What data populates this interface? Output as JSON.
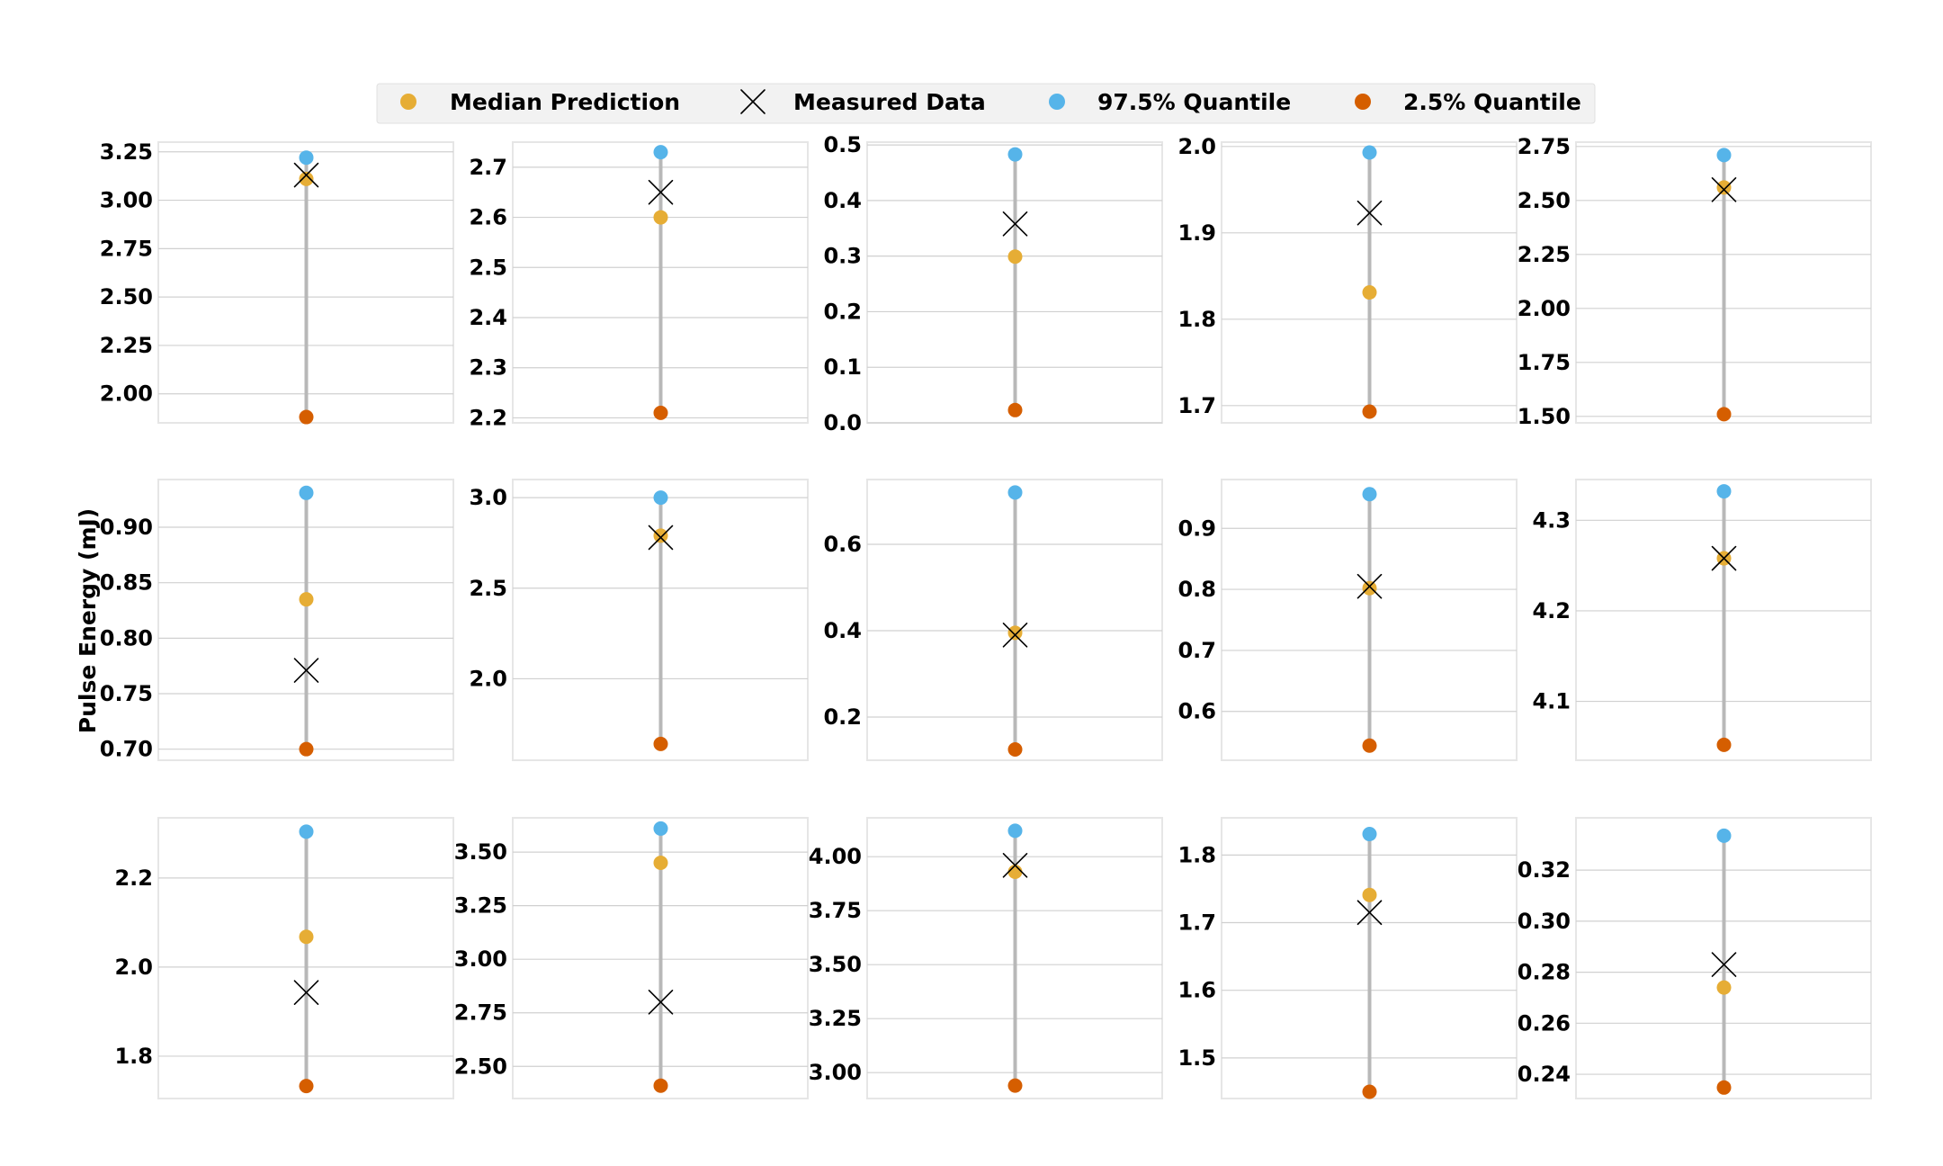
{
  "chart_data": {
    "type": "scatter",
    "ylabel": "Pulse Energy (mJ)",
    "legend": {
      "placement": "top-center",
      "items": [
        {
          "key": "median",
          "label": "Median Prediction",
          "color": "#E6AD35",
          "marker": "circle"
        },
        {
          "key": "measured",
          "label": "Measured Data",
          "color": "#000000",
          "marker": "x"
        },
        {
          "key": "q975",
          "label": "97.5% Quantile",
          "color": "#56B4E9",
          "marker": "circle"
        },
        {
          "key": "q025",
          "label": "2.5% Quantile",
          "color": "#D55E00",
          "marker": "circle"
        }
      ]
    },
    "grid": true,
    "panels": [
      {
        "ylim": [
          1.85,
          3.3
        ],
        "ticks": [
          "2.00",
          "2.25",
          "2.50",
          "2.75",
          "3.00",
          "3.25"
        ],
        "q975": 3.22,
        "q025": 1.88,
        "median": 3.11,
        "measured": 3.13
      },
      {
        "ylim": [
          2.19,
          2.75
        ],
        "ticks": [
          "2.2",
          "2.3",
          "2.4",
          "2.5",
          "2.6",
          "2.7"
        ],
        "q975": 2.73,
        "q025": 2.21,
        "median": 2.6,
        "measured": 2.65
      },
      {
        "ylim": [
          0.0,
          0.505
        ],
        "ticks": [
          "0.0",
          "0.1",
          "0.2",
          "0.3",
          "0.4",
          "0.5"
        ],
        "q975": 0.483,
        "q025": 0.023,
        "median": 0.299,
        "measured": 0.358
      },
      {
        "ylim": [
          1.68,
          2.005
        ],
        "ticks": [
          "1.7",
          "1.8",
          "1.9",
          "2.0"
        ],
        "q975": 1.993,
        "q025": 1.693,
        "median": 1.831,
        "measured": 1.923
      },
      {
        "ylim": [
          1.47,
          2.77
        ],
        "ticks": [
          "1.50",
          "1.75",
          "2.00",
          "2.25",
          "2.50",
          "2.75"
        ],
        "q975": 2.71,
        "q025": 1.51,
        "median": 2.56,
        "measured": 2.55
      },
      {
        "ylim": [
          0.69,
          0.943
        ],
        "ticks": [
          "0.70",
          "0.75",
          "0.80",
          "0.85",
          "0.90"
        ],
        "q975": 0.931,
        "q025": 0.7,
        "median": 0.835,
        "measured": 0.771
      },
      {
        "ylim": [
          1.55,
          3.1
        ],
        "ticks": [
          "2.0",
          "2.5",
          "3.0"
        ],
        "q975": 3.0,
        "q025": 1.64,
        "median": 2.79,
        "measured": 2.78
      },
      {
        "ylim": [
          0.1,
          0.75
        ],
        "ticks": [
          "0.2",
          "0.4",
          "0.6"
        ],
        "q975": 0.72,
        "q025": 0.125,
        "median": 0.395,
        "measured": 0.39
      },
      {
        "ylim": [
          0.52,
          0.98
        ],
        "ticks": [
          "0.6",
          "0.7",
          "0.8",
          "0.9"
        ],
        "q975": 0.956,
        "q025": 0.544,
        "median": 0.802,
        "measured": 0.805
      },
      {
        "ylim": [
          4.035,
          4.345
        ],
        "ticks": [
          "4.1",
          "4.2",
          "4.3"
        ],
        "q975": 4.332,
        "q025": 4.052,
        "median": 4.258,
        "measured": 4.258
      },
      {
        "ylim": [
          1.705,
          2.335
        ],
        "ticks": [
          "1.8",
          "2.0",
          "2.2"
        ],
        "q975": 2.304,
        "q025": 1.733,
        "median": 2.068,
        "measured": 1.943
      },
      {
        "ylim": [
          2.35,
          3.66
        ],
        "ticks": [
          "2.50",
          "2.75",
          "3.00",
          "3.25",
          "3.50"
        ],
        "q975": 3.61,
        "q025": 2.41,
        "median": 3.45,
        "measured": 2.8
      },
      {
        "ylim": [
          2.88,
          4.18
        ],
        "ticks": [
          "3.00",
          "3.25",
          "3.50",
          "3.75",
          "4.00"
        ],
        "q975": 4.12,
        "q025": 2.94,
        "median": 3.93,
        "measured": 3.96
      },
      {
        "ylim": [
          1.44,
          1.855
        ],
        "ticks": [
          "1.5",
          "1.6",
          "1.7",
          "1.8"
        ],
        "q975": 1.831,
        "q025": 1.45,
        "median": 1.741,
        "measured": 1.715
      },
      {
        "ylim": [
          0.2305,
          0.3405
        ],
        "ticks": [
          "0.24",
          "0.26",
          "0.28",
          "0.30",
          "0.32"
        ],
        "q975": 0.3335,
        "q025": 0.2348,
        "median": 0.274,
        "measured": 0.283
      }
    ]
  }
}
